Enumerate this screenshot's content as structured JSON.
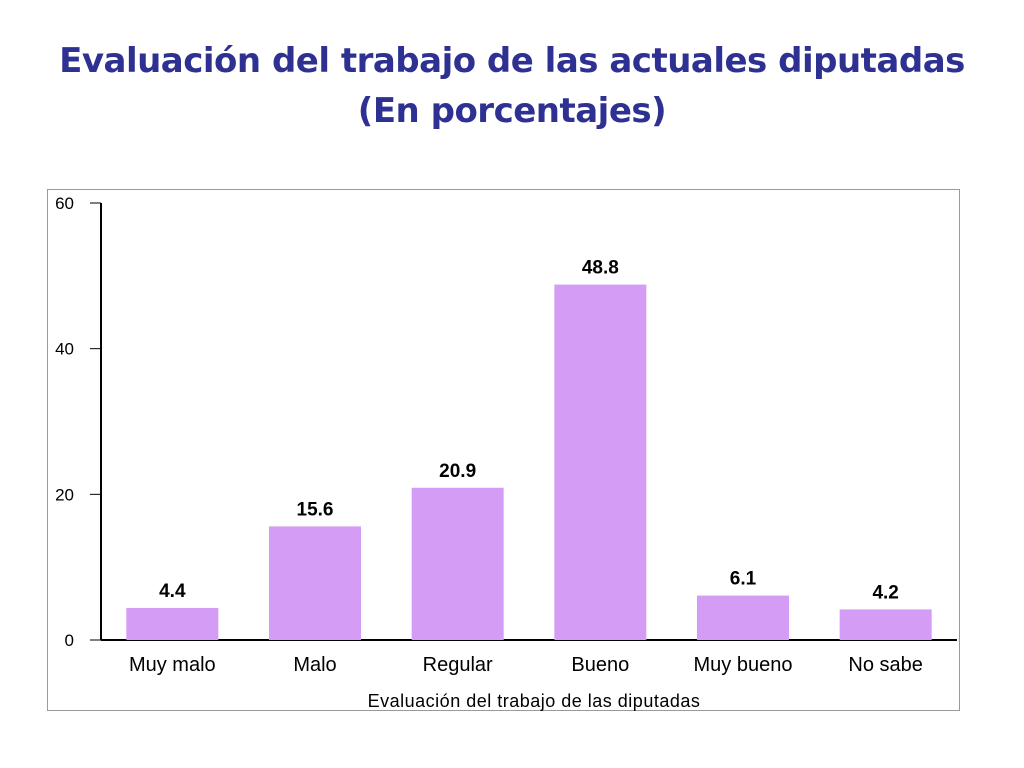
{
  "title": {
    "line1": "Evaluación del trabajo de las actuales diputadas",
    "line2": "(En porcentajes)"
  },
  "chart_data": {
    "type": "bar",
    "categories": [
      "Muy malo",
      "Malo",
      "Regular",
      "Bueno",
      "Muy bueno",
      "No sabe"
    ],
    "values": [
      4.4,
      15.6,
      20.9,
      48.8,
      6.1,
      4.2
    ],
    "data_labels": [
      "4.4",
      "15.6",
      "20.9",
      "48.8",
      "6.1",
      "4.2"
    ],
    "xlabel": "Evaluación del trabajo de las diputadas",
    "ylabel": "",
    "ylim": [
      0,
      60
    ],
    "yticks": [
      0,
      20,
      40,
      60
    ],
    "ytick_labels": [
      "0",
      "20",
      "40",
      "60"
    ],
    "bar_color": "#d49cf5",
    "grid": false,
    "legend": "none"
  }
}
